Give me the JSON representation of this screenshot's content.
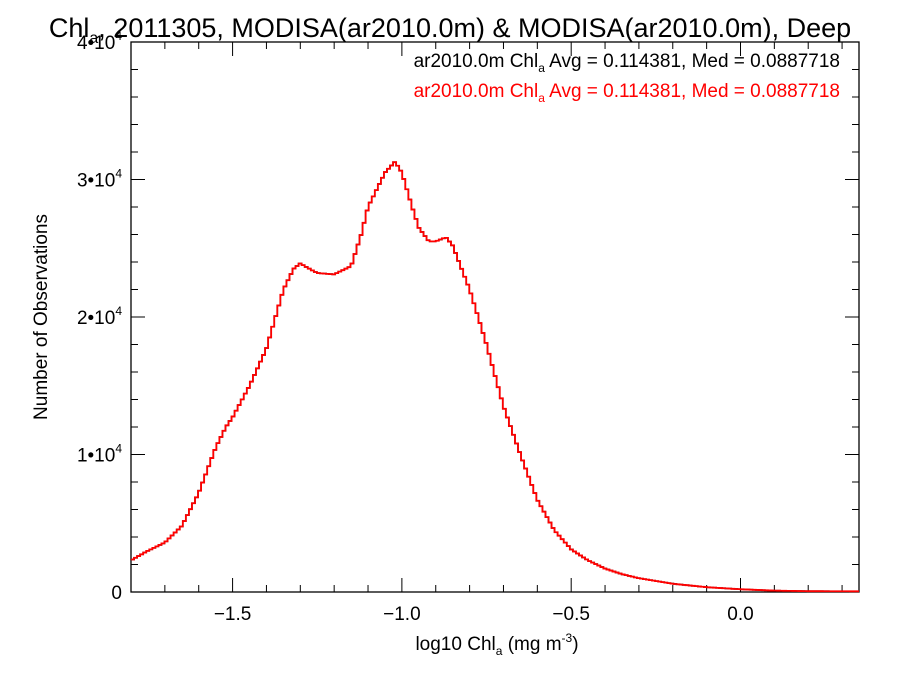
{
  "chart_data": {
    "type": "line",
    "title": {
      "main": "Chl",
      "main_sub": "a",
      "rest": ", 2011305, MODISA(ar2010.0m) & MODISA(ar2010.0m), Deep"
    },
    "xlabel": {
      "main": "log10 Chl",
      "sub": "a",
      "unit": " (mg m",
      "unit_sup": "-3",
      "close": ")"
    },
    "ylabel": "Number of Observations",
    "xlim": [
      -1.8,
      0.35
    ],
    "ylim": [
      0,
      40000
    ],
    "xticks": [
      {
        "value": -1.5,
        "label": "−1.5"
      },
      {
        "value": -1.0,
        "label": "−1.0"
      },
      {
        "value": -0.5,
        "label": "−0.5"
      },
      {
        "value": 0.0,
        "label": "0.0"
      }
    ],
    "yticks": [
      {
        "value": 0,
        "label": "0",
        "exp": ""
      },
      {
        "value": 10000,
        "label": "1•10",
        "exp": "4"
      },
      {
        "value": 20000,
        "label": "2•10",
        "exp": "4"
      },
      {
        "value": 30000,
        "label": "3•10",
        "exp": "4"
      },
      {
        "value": 40000,
        "label": "4•10",
        "exp": "4"
      }
    ],
    "grid": false,
    "legend_position": "top-right",
    "series": [
      {
        "name": "ar2010.0m Chl_a Avg = 0.114381, Med = 0.0887718",
        "label": {
          "pre": "ar2010.0m Chl",
          "sub": "a",
          "post": " Avg = 0.114381, Med = 0.0887718"
        },
        "color": "#000000",
        "x": [
          -1.8,
          -1.75,
          -1.7,
          -1.65,
          -1.6,
          -1.55,
          -1.52,
          -1.5,
          -1.45,
          -1.4,
          -1.35,
          -1.32,
          -1.3,
          -1.28,
          -1.25,
          -1.2,
          -1.15,
          -1.12,
          -1.1,
          -1.05,
          -1.02,
          -1.0,
          -0.97,
          -0.95,
          -0.92,
          -0.9,
          -0.87,
          -0.85,
          -0.8,
          -0.75,
          -0.7,
          -0.65,
          -0.6,
          -0.55,
          -0.5,
          -0.45,
          -0.4,
          -0.35,
          -0.3,
          -0.2,
          -0.1,
          0.0,
          0.1,
          0.2,
          0.35
        ],
        "y": [
          2300,
          3000,
          3600,
          4800,
          7200,
          10500,
          12000,
          12700,
          15000,
          17700,
          22000,
          23500,
          23900,
          23600,
          23200,
          23100,
          23700,
          26000,
          28000,
          30500,
          31300,
          30500,
          28000,
          26500,
          25500,
          25500,
          25800,
          25200,
          22000,
          18000,
          13500,
          10000,
          6700,
          4500,
          3100,
          2300,
          1700,
          1300,
          1000,
          600,
          350,
          200,
          100,
          60,
          50
        ]
      },
      {
        "name": "ar2010.0m Chl_a Avg = 0.114381, Med = 0.0887718",
        "label": {
          "pre": "ar2010.0m Chl",
          "sub": "a",
          "post": " Avg = 0.114381, Med = 0.0887718"
        },
        "color": "#ff0000",
        "x": [
          -1.8,
          -1.75,
          -1.7,
          -1.65,
          -1.6,
          -1.55,
          -1.52,
          -1.5,
          -1.45,
          -1.4,
          -1.35,
          -1.32,
          -1.3,
          -1.28,
          -1.25,
          -1.2,
          -1.15,
          -1.12,
          -1.1,
          -1.05,
          -1.02,
          -1.0,
          -0.97,
          -0.95,
          -0.92,
          -0.9,
          -0.87,
          -0.85,
          -0.8,
          -0.75,
          -0.7,
          -0.65,
          -0.6,
          -0.55,
          -0.5,
          -0.45,
          -0.4,
          -0.35,
          -0.3,
          -0.2,
          -0.1,
          0.0,
          0.1,
          0.2,
          0.35
        ],
        "y": [
          2300,
          3000,
          3600,
          4800,
          7200,
          10500,
          12000,
          12700,
          15000,
          17700,
          22000,
          23500,
          23900,
          23600,
          23200,
          23100,
          23700,
          26000,
          28000,
          30500,
          31300,
          30500,
          28000,
          26500,
          25500,
          25500,
          25800,
          25200,
          22000,
          18000,
          13500,
          10000,
          6700,
          4500,
          3100,
          2300,
          1700,
          1300,
          1000,
          600,
          350,
          200,
          100,
          60,
          50
        ]
      }
    ]
  }
}
